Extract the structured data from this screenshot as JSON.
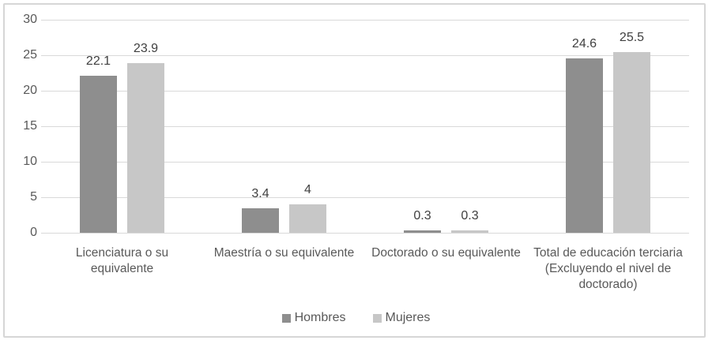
{
  "chart_data": {
    "type": "bar",
    "categories": [
      "Licenciatura o su equivalente",
      "Maestría o su equivalente",
      "Doctorado o su equivalente",
      "Total de educación terciaria (Excluyendo el nivel de doctorado)"
    ],
    "series": [
      {
        "name": "Hombres",
        "color": "#8e8e8e",
        "values": [
          22.1,
          3.4,
          0.3,
          24.6
        ],
        "labels": [
          "22.1",
          "3.4",
          "0.3",
          "24.6"
        ]
      },
      {
        "name": "Mujeres",
        "color": "#c7c7c7",
        "values": [
          23.9,
          4,
          0.3,
          25.5
        ],
        "labels": [
          "23.9",
          "4",
          "0.3",
          "25.5"
        ]
      }
    ],
    "title": "",
    "xlabel": "",
    "ylabel": "",
    "ylim": [
      0,
      30
    ],
    "yticks": [
      0,
      5,
      10,
      15,
      20,
      25,
      30
    ],
    "grid": true,
    "legend_position": "bottom"
  },
  "colors": {
    "hombres_bar": "#8e8e8e",
    "mujeres_bar": "#c7c7c7",
    "gridline": "#d9d9d9",
    "tick_text": "#595959",
    "value_text": "#404040",
    "frame_border": "#d6d6d6",
    "background": "#ffffff"
  }
}
